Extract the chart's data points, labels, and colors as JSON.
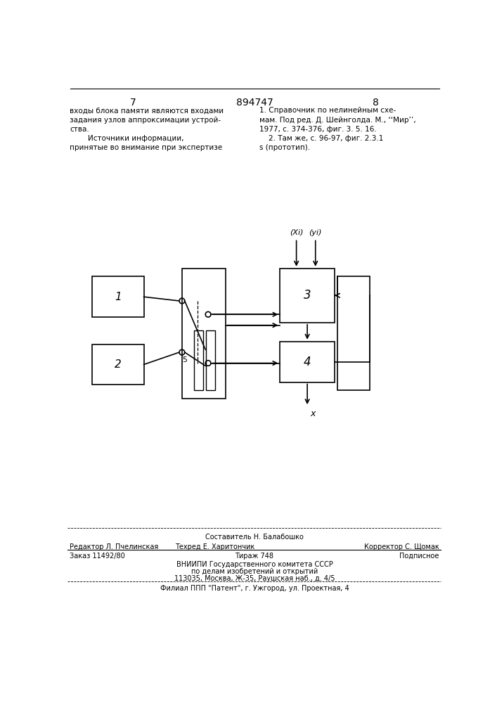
{
  "page_numbers": [
    "7",
    "8"
  ],
  "patent_number": "894747",
  "text_left": "входы блока памяти являются входами\nзадания узлов аппроксимации устрой-\nства.\n        Источники информации,\nпринятые во внимание при экспертизе",
  "text_right": "1. Справочник по нелинейным схе-\nмам. Под ред. Д. Шейнголда. М., ‘‘Мир’’,\n1977, с. 374-376, фиг. 3. 5. 16.\n    2. Там же, с. 96-97, фиг. 2.3.1\ns (прототип).",
  "footer_sestavitel": "Составитель Н. Балабошко",
  "footer_editor": "Редактор Л. Пчелинская",
  "footer_tehred": "Техред Е. Харитончик",
  "footer_korrektor": "Корректор С. Щомак",
  "footer_zakaz": "Заказ 11492/80",
  "footer_tirazh": "Тираж 748",
  "footer_podpisnoe": "Подписное",
  "footer_vniip1": "ВНИИПИ Государственного комитета СССР",
  "footer_vniip2": "по делам изобретений и открытий",
  "footer_vniip3": "113035, Москва, Ж-35, Раушская наб., д. 4/5",
  "footer_filial": "Филиал ППП \"Патент\", г. Ужгород, ул. Проектная, 4",
  "bg_color": "#ffffff",
  "text_color": "#000000"
}
